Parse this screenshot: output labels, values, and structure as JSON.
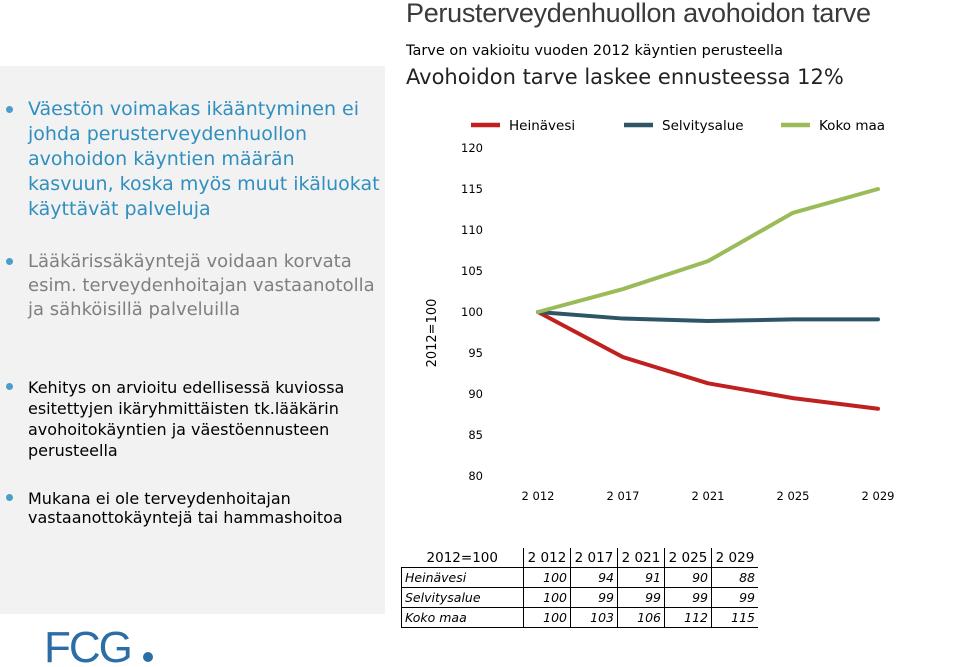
{
  "bullets": [
    "Väestön voimakas ikääntyminen ei johda perusterveydenhuollon avohoidon käyntien määrän kasvuun, koska myös muut ikäluokat käyttävät palveluja",
    "Lääkärissäkäyntejä voidaan korvata esim. terveydenhoitajan vastaanotolla ja sähköisillä palveluilla",
    "Kehitys on arvioitu edellisessä kuviossa esitettyjen ikäryhmittäisten tk.lääkärin avohoitokäyntien ja väestöennusteen perusteella",
    "Mukana ei ole terveydenhoitajan vastaanottokäyntejä tai hammashoitoa"
  ],
  "header": {
    "title": "Perusterveydenhuollon avohoidon tarve",
    "subtitle": "Tarve on vakioitu vuoden 2012 käyntien perusteella",
    "headline": "Avohoidon tarve laskee ennusteessa 12%"
  },
  "chart_data": {
    "type": "line",
    "ylabel": "2012=100",
    "x": [
      "2 012",
      "2 017",
      "2 021",
      "2 025",
      "2 029"
    ],
    "y_ticks": [
      "80",
      "85",
      "90",
      "95",
      "100",
      "105",
      "110",
      "115",
      "120"
    ],
    "ylim": [
      80,
      120
    ],
    "legend_position": "top",
    "series": [
      {
        "name": "Heinävesi",
        "color": "#c0201e",
        "values": [
          100,
          94.5,
          91.3,
          89.5,
          88.2
        ]
      },
      {
        "name": "Selvitysalue",
        "color": "#2e5566",
        "values": [
          100,
          99.2,
          98.9,
          99.1,
          99.1
        ]
      },
      {
        "name": "Koko maa",
        "color": "#9bbb59",
        "values": [
          100,
          102.8,
          106.2,
          112.1,
          115.0
        ]
      }
    ]
  },
  "table": {
    "corner_label": "2012=100",
    "years": [
      "2 012",
      "2 017",
      "2 021",
      "2 025",
      "2 029"
    ],
    "rows": [
      {
        "label": "Heinävesi",
        "values": [
          "100",
          "94",
          "91",
          "90",
          "88"
        ]
      },
      {
        "label": "Selvitysalue",
        "values": [
          "100",
          "99",
          "99",
          "99",
          "99"
        ]
      },
      {
        "label": "Koko maa",
        "values": [
          "100",
          "103",
          "106",
          "112",
          "115"
        ]
      }
    ]
  },
  "logo": {
    "text": "FCG",
    "color": "#2b6ea6"
  }
}
